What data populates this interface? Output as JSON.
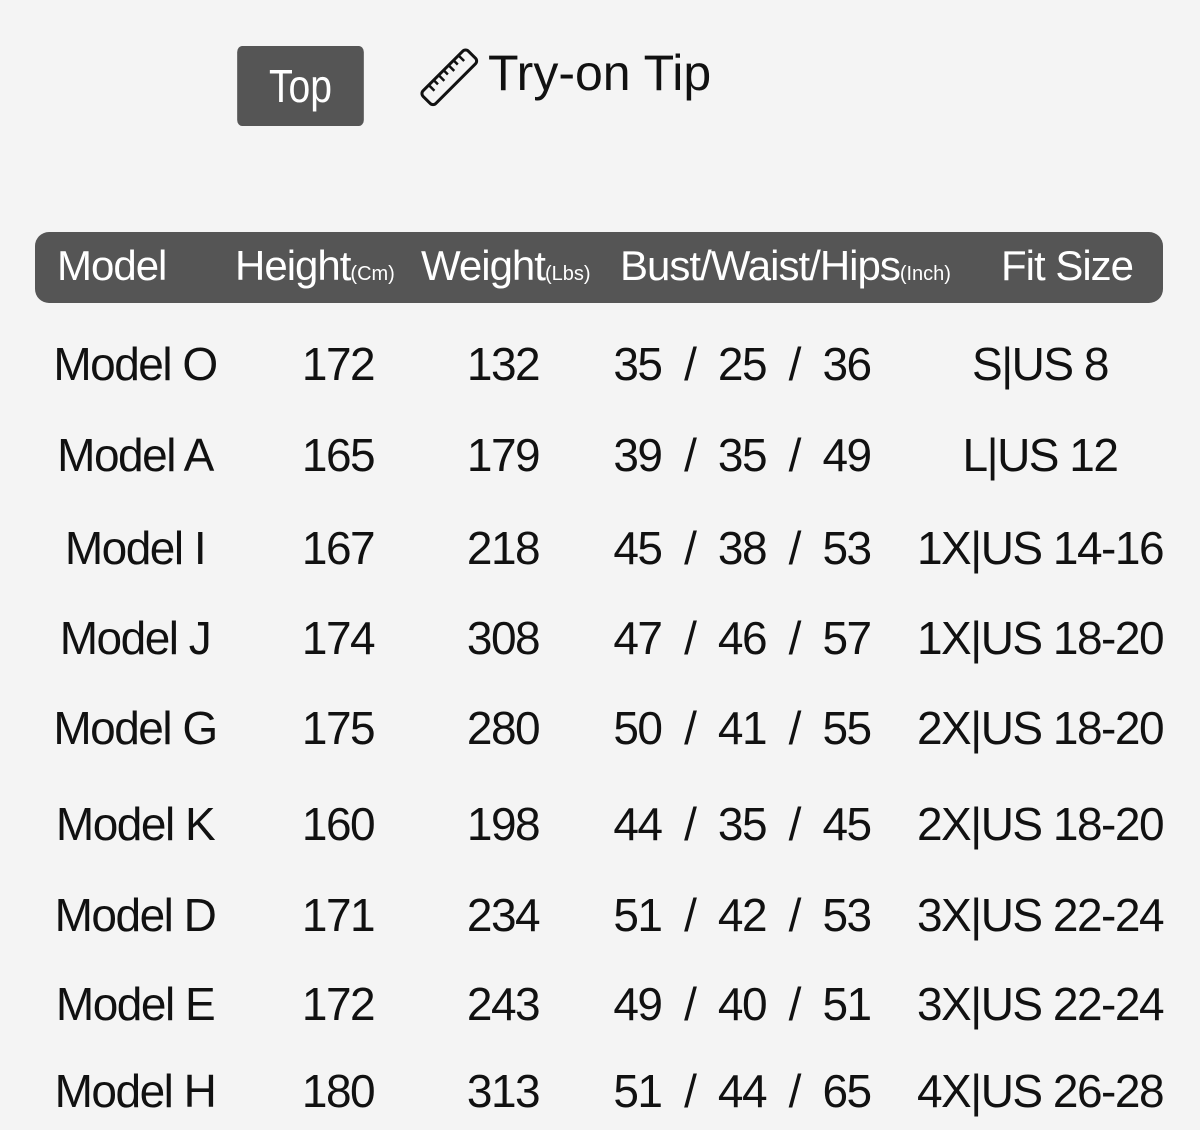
{
  "category_tag": "Top",
  "tip_icon": "ruler-icon",
  "tip_title": "Try-on Tip",
  "header": {
    "model": "Model",
    "height": "Height",
    "height_unit": "(Cm)",
    "weight": "Weight",
    "weight_unit": "(Lbs)",
    "bwh": "Bust/Waist/Hips",
    "bwh_unit": "(Inch)",
    "fit": "Fit Size"
  },
  "rows": [
    {
      "model": "Model O",
      "height": "172",
      "weight": "132",
      "bwh": "35 / 25 / 36",
      "fit": "S|US 8"
    },
    {
      "model": "Model A",
      "height": "165",
      "weight": "179",
      "bwh": "39 / 35 / 49",
      "fit": "L|US 12"
    },
    {
      "model": "Model I",
      "height": "167",
      "weight": "218",
      "bwh": "45 / 38 / 53",
      "fit": "1X|US 14-16"
    },
    {
      "model": "Model J",
      "height": "174",
      "weight": "308",
      "bwh": "47 / 46 / 57",
      "fit": "1X|US 18-20"
    },
    {
      "model": "Model G",
      "height": "175",
      "weight": "280",
      "bwh": "50 / 41 / 55",
      "fit": "2X|US 18-20"
    },
    {
      "model": "Model K",
      "height": "160",
      "weight": "198",
      "bwh": "44 / 35 / 45",
      "fit": "2X|US 18-20"
    },
    {
      "model": "Model D",
      "height": "171",
      "weight": "234",
      "bwh": "51 / 42 / 53",
      "fit": "3X|US 22-24"
    },
    {
      "model": "Model E",
      "height": "172",
      "weight": "243",
      "bwh": "49 / 40 / 51",
      "fit": "3X|US 22-24"
    },
    {
      "model": "Model H",
      "height": "180",
      "weight": "313",
      "bwh": "51 / 44 / 65",
      "fit": "4X|US 26-28"
    }
  ]
}
